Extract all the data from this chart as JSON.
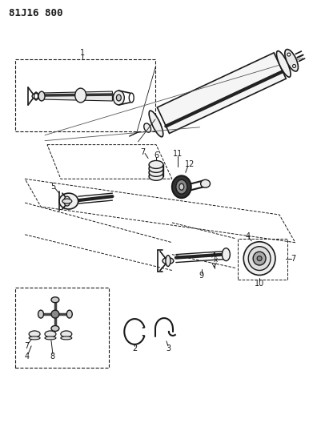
{
  "title": "81J16 800",
  "bg_color": "#ffffff",
  "line_color": "#1a1a1a",
  "title_fontsize": 9,
  "fig_width": 3.96,
  "fig_height": 5.33,
  "dpi": 100
}
